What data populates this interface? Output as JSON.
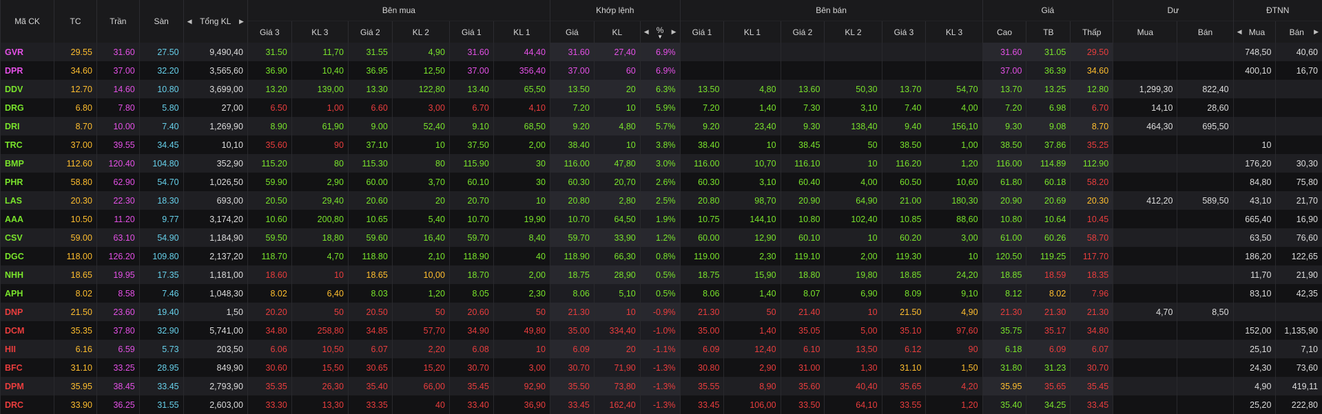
{
  "headers": {
    "symbol": "Mã CK",
    "ref": "TC",
    "ceiling": "Trần",
    "floor": "Sàn",
    "total_volume": "Tổng KL",
    "bid_group": "Bên mua",
    "match_group": "Khớp lệnh",
    "ask_group": "Bên bán",
    "price_group": "Giá",
    "remain_group": "Dư",
    "foreign_group": "ĐTNN",
    "bid_sub": [
      "Giá 3",
      "KL 3",
      "Giá 2",
      "KL 2",
      "Giá 1",
      "KL 1"
    ],
    "match_sub": [
      "Giá",
      "KL",
      "%"
    ],
    "ask_sub": [
      "Giá 1",
      "KL 1",
      "Giá 2",
      "KL 2",
      "Giá 3",
      "KL 3"
    ],
    "price_sub": [
      "Cao",
      "TB",
      "Thấp"
    ],
    "remain_sub": [
      "Mua",
      "Bán"
    ],
    "foreign_sub": [
      "Mua",
      "Bán"
    ]
  },
  "icons": {
    "left": "chevron-left-icon",
    "right": "chevron-right-icon",
    "sort": "sort-desc-icon"
  },
  "colors": {
    "up": "#79e32b",
    "down": "#ea3d3d",
    "ref": "#ffbe2e",
    "ceiling": "#e450e6",
    "floor": "#66cfe9",
    "neutral": "#dcdcdc"
  },
  "rows": [
    {
      "sym": "GVR",
      "sc": "ce",
      "tc": "29.55",
      "tran": "31.60",
      "san": "27.50",
      "tkl": "9,490,40",
      "b3": [
        "31.50",
        "u"
      ],
      "k3": "11,70",
      "b2": [
        "31.55",
        "u"
      ],
      "k2": "4,90",
      "b1": [
        "31.60",
        "ce"
      ],
      "k1": "44,40",
      "mp": [
        "31.60",
        "ce"
      ],
      "mk": "27,40",
      "pct": "6.9%",
      "a1": [
        "",
        ""
      ],
      "ak1": "",
      "a2": [
        "",
        ""
      ],
      "ak2": "",
      "a3": [
        "",
        ""
      ],
      "ak3": "",
      "hi": [
        "31.60",
        "ce"
      ],
      "avg": [
        "31.05",
        "u"
      ],
      "lo": [
        "29.50",
        "d"
      ],
      "rm": "",
      "rb": "",
      "fm": "748,50",
      "fb": "40,60"
    },
    {
      "sym": "DPR",
      "sc": "ce",
      "tc": "34.60",
      "tran": "37.00",
      "san": "32.20",
      "tkl": "3,565,60",
      "b3": [
        "36.90",
        "u"
      ],
      "k3": "10,40",
      "b2": [
        "36.95",
        "u"
      ],
      "k2": "12,50",
      "b1": [
        "37.00",
        "ce"
      ],
      "k1": "356,40",
      "mp": [
        "37.00",
        "ce"
      ],
      "mk": "60",
      "pct": "6.9%",
      "a1": [
        "",
        ""
      ],
      "ak1": "",
      "a2": [
        "",
        ""
      ],
      "ak2": "",
      "a3": [
        "",
        ""
      ],
      "ak3": "",
      "hi": [
        "37.00",
        "ce"
      ],
      "avg": [
        "36.39",
        "u"
      ],
      "lo": [
        "34.60",
        "r"
      ],
      "rm": "",
      "rb": "",
      "fm": "400,10",
      "fb": "16,70"
    },
    {
      "sym": "DDV",
      "sc": "u",
      "tc": "12.70",
      "tran": "14.60",
      "san": "10.80",
      "tkl": "3,699,00",
      "b3": [
        "13.20",
        "u"
      ],
      "k3": "139,00",
      "b2": [
        "13.30",
        "u"
      ],
      "k2": "122,80",
      "b1": [
        "13.40",
        "u"
      ],
      "k1": "65,50",
      "mp": [
        "13.50",
        "u"
      ],
      "mk": "20",
      "pct": "6.3%",
      "a1": [
        "13.50",
        "u"
      ],
      "ak1": "4,80",
      "a2": [
        "13.60",
        "u"
      ],
      "ak2": "50,30",
      "a3": [
        "13.70",
        "u"
      ],
      "ak3": "54,70",
      "hi": [
        "13.70",
        "u"
      ],
      "avg": [
        "13.25",
        "u"
      ],
      "lo": [
        "12.80",
        "u"
      ],
      "rm": "1,299,30",
      "rb": "822,40",
      "fm": "",
      "fb": ""
    },
    {
      "sym": "DRG",
      "sc": "u",
      "tc": "6.80",
      "tran": "7.80",
      "san": "5.80",
      "tkl": "27,00",
      "b3": [
        "6.50",
        "d"
      ],
      "k3": "1,00",
      "b2": [
        "6.60",
        "d"
      ],
      "k2": "3,00",
      "b1": [
        "6.70",
        "d"
      ],
      "k1": "4,10",
      "mp": [
        "7.20",
        "u"
      ],
      "mk": "10",
      "pct": "5.9%",
      "a1": [
        "7.20",
        "u"
      ],
      "ak1": "1,40",
      "a2": [
        "7.30",
        "u"
      ],
      "ak2": "3,10",
      "a3": [
        "7.40",
        "u"
      ],
      "ak3": "4,00",
      "hi": [
        "7.20",
        "u"
      ],
      "avg": [
        "6.98",
        "u"
      ],
      "lo": [
        "6.70",
        "d"
      ],
      "rm": "14,10",
      "rb": "28,60",
      "fm": "",
      "fb": ""
    },
    {
      "sym": "DRI",
      "sc": "u",
      "tc": "8.70",
      "tran": "10.00",
      "san": "7.40",
      "tkl": "1,269,90",
      "b3": [
        "8.90",
        "u"
      ],
      "k3": "61,90",
      "b2": [
        "9.00",
        "u"
      ],
      "k2": "52,40",
      "b1": [
        "9.10",
        "u"
      ],
      "k1": "68,50",
      "mp": [
        "9.20",
        "u"
      ],
      "mk": "4,80",
      "pct": "5.7%",
      "a1": [
        "9.20",
        "u"
      ],
      "ak1": "23,40",
      "a2": [
        "9.30",
        "u"
      ],
      "ak2": "138,40",
      "a3": [
        "9.40",
        "u"
      ],
      "ak3": "156,10",
      "hi": [
        "9.30",
        "u"
      ],
      "avg": [
        "9.08",
        "u"
      ],
      "lo": [
        "8.70",
        "r"
      ],
      "rm": "464,30",
      "rb": "695,50",
      "fm": "",
      "fb": ""
    },
    {
      "sym": "TRC",
      "sc": "u",
      "tc": "37.00",
      "tran": "39.55",
      "san": "34.45",
      "tkl": "10,10",
      "b3": [
        "35.60",
        "d"
      ],
      "k3": "90",
      "b2": [
        "37.10",
        "u"
      ],
      "k2": "10",
      "b1": [
        "37.50",
        "u"
      ],
      "k1": "2,00",
      "mp": [
        "38.40",
        "u"
      ],
      "mk": "10",
      "pct": "3.8%",
      "a1": [
        "38.40",
        "u"
      ],
      "ak1": "10",
      "a2": [
        "38.45",
        "u"
      ],
      "ak2": "50",
      "a3": [
        "38.50",
        "u"
      ],
      "ak3": "1,00",
      "hi": [
        "38.50",
        "u"
      ],
      "avg": [
        "37.86",
        "u"
      ],
      "lo": [
        "35.25",
        "d"
      ],
      "rm": "",
      "rb": "",
      "fm": "10",
      "fb": ""
    },
    {
      "sym": "BMP",
      "sc": "u",
      "tc": "112.60",
      "tran": "120.40",
      "san": "104.80",
      "tkl": "352,90",
      "b3": [
        "115.20",
        "u"
      ],
      "k3": "80",
      "b2": [
        "115.30",
        "u"
      ],
      "k2": "80",
      "b1": [
        "115.90",
        "u"
      ],
      "k1": "30",
      "mp": [
        "116.00",
        "u"
      ],
      "mk": "47,80",
      "pct": "3.0%",
      "a1": [
        "116.00",
        "u"
      ],
      "ak1": "10,70",
      "a2": [
        "116.10",
        "u"
      ],
      "ak2": "10",
      "a3": [
        "116.20",
        "u"
      ],
      "ak3": "1,20",
      "hi": [
        "116.00",
        "u"
      ],
      "avg": [
        "114.89",
        "u"
      ],
      "lo": [
        "112.90",
        "u"
      ],
      "rm": "",
      "rb": "",
      "fm": "176,20",
      "fb": "30,30"
    },
    {
      "sym": "PHR",
      "sc": "u",
      "tc": "58.80",
      "tran": "62.90",
      "san": "54.70",
      "tkl": "1,026,50",
      "b3": [
        "59.90",
        "u"
      ],
      "k3": "2,90",
      "b2": [
        "60.00",
        "u"
      ],
      "k2": "3,70",
      "b1": [
        "60.10",
        "u"
      ],
      "k1": "30",
      "mp": [
        "60.30",
        "u"
      ],
      "mk": "20,70",
      "pct": "2.6%",
      "a1": [
        "60.30",
        "u"
      ],
      "ak1": "3,10",
      "a2": [
        "60.40",
        "u"
      ],
      "ak2": "4,00",
      "a3": [
        "60.50",
        "u"
      ],
      "ak3": "10,60",
      "hi": [
        "61.80",
        "u"
      ],
      "avg": [
        "60.18",
        "u"
      ],
      "lo": [
        "58.20",
        "d"
      ],
      "rm": "",
      "rb": "",
      "fm": "84,80",
      "fb": "75,80"
    },
    {
      "sym": "LAS",
      "sc": "u",
      "tc": "20.30",
      "tran": "22.30",
      "san": "18.30",
      "tkl": "693,00",
      "b3": [
        "20.50",
        "u"
      ],
      "k3": "29,40",
      "b2": [
        "20.60",
        "u"
      ],
      "k2": "20",
      "b1": [
        "20.70",
        "u"
      ],
      "k1": "10",
      "mp": [
        "20.80",
        "u"
      ],
      "mk": "2,80",
      "pct": "2.5%",
      "a1": [
        "20.80",
        "u"
      ],
      "ak1": "98,70",
      "a2": [
        "20.90",
        "u"
      ],
      "ak2": "64,90",
      "a3": [
        "21.00",
        "u"
      ],
      "ak3": "180,30",
      "hi": [
        "20.90",
        "u"
      ],
      "avg": [
        "20.69",
        "u"
      ],
      "lo": [
        "20.30",
        "r"
      ],
      "rm": "412,20",
      "rb": "589,50",
      "fm": "43,10",
      "fb": "21,70"
    },
    {
      "sym": "AAA",
      "sc": "u",
      "tc": "10.50",
      "tran": "11.20",
      "san": "9.77",
      "tkl": "3,174,20",
      "b3": [
        "10.60",
        "u"
      ],
      "k3": "200,80",
      "b2": [
        "10.65",
        "u"
      ],
      "k2": "5,40",
      "b1": [
        "10.70",
        "u"
      ],
      "k1": "19,90",
      "mp": [
        "10.70",
        "u"
      ],
      "mk": "64,50",
      "pct": "1.9%",
      "a1": [
        "10.75",
        "u"
      ],
      "ak1": "144,10",
      "a2": [
        "10.80",
        "u"
      ],
      "ak2": "102,40",
      "a3": [
        "10.85",
        "u"
      ],
      "ak3": "88,60",
      "hi": [
        "10.80",
        "u"
      ],
      "avg": [
        "10.64",
        "u"
      ],
      "lo": [
        "10.45",
        "d"
      ],
      "rm": "",
      "rb": "",
      "fm": "665,40",
      "fb": "16,90"
    },
    {
      "sym": "CSV",
      "sc": "u",
      "tc": "59.00",
      "tran": "63.10",
      "san": "54.90",
      "tkl": "1,184,90",
      "b3": [
        "59.50",
        "u"
      ],
      "k3": "18,80",
      "b2": [
        "59.60",
        "u"
      ],
      "k2": "16,40",
      "b1": [
        "59.70",
        "u"
      ],
      "k1": "8,40",
      "mp": [
        "59.70",
        "u"
      ],
      "mk": "33,90",
      "pct": "1.2%",
      "a1": [
        "60.00",
        "u"
      ],
      "ak1": "12,90",
      "a2": [
        "60.10",
        "u"
      ],
      "ak2": "10",
      "a3": [
        "60.20",
        "u"
      ],
      "ak3": "3,00",
      "hi": [
        "61.00",
        "u"
      ],
      "avg": [
        "60.26",
        "u"
      ],
      "lo": [
        "58.70",
        "d"
      ],
      "rm": "",
      "rb": "",
      "fm": "63,50",
      "fb": "76,60"
    },
    {
      "sym": "DGC",
      "sc": "u",
      "tc": "118.00",
      "tran": "126.20",
      "san": "109.80",
      "tkl": "2,137,20",
      "b3": [
        "118.70",
        "u"
      ],
      "k3": "4,70",
      "b2": [
        "118.80",
        "u"
      ],
      "k2": "2,10",
      "b1": [
        "118.90",
        "u"
      ],
      "k1": "40",
      "mp": [
        "118.90",
        "u"
      ],
      "mk": "66,30",
      "pct": "0.8%",
      "a1": [
        "119.00",
        "u"
      ],
      "ak1": "2,30",
      "a2": [
        "119.10",
        "u"
      ],
      "ak2": "2,00",
      "a3": [
        "119.30",
        "u"
      ],
      "ak3": "10",
      "hi": [
        "120.50",
        "u"
      ],
      "avg": [
        "119.25",
        "u"
      ],
      "lo": [
        "117.70",
        "d"
      ],
      "rm": "",
      "rb": "",
      "fm": "186,20",
      "fb": "122,65"
    },
    {
      "sym": "NHH",
      "sc": "u",
      "tc": "18.65",
      "tran": "19.95",
      "san": "17.35",
      "tkl": "1,181,00",
      "b3": [
        "18.60",
        "d"
      ],
      "k3": "10",
      "b2": [
        "18.65",
        "r"
      ],
      "k2": "10,00",
      "b1": [
        "18.70",
        "u"
      ],
      "k1": "2,00",
      "mp": [
        "18.75",
        "u"
      ],
      "mk": "28,90",
      "pct": "0.5%",
      "a1": [
        "18.75",
        "u"
      ],
      "ak1": "15,90",
      "a2": [
        "18.80",
        "u"
      ],
      "ak2": "19,80",
      "a3": [
        "18.85",
        "u"
      ],
      "ak3": "24,20",
      "hi": [
        "18.85",
        "u"
      ],
      "avg": [
        "18.59",
        "d"
      ],
      "lo": [
        "18.35",
        "d"
      ],
      "rm": "",
      "rb": "",
      "fm": "11,70",
      "fb": "21,90"
    },
    {
      "sym": "APH",
      "sc": "u",
      "tc": "8.02",
      "tran": "8.58",
      "san": "7.46",
      "tkl": "1,048,30",
      "b3": [
        "8.02",
        "r"
      ],
      "k3": "6,40",
      "b2": [
        "8.03",
        "u"
      ],
      "k2": "1,20",
      "b1": [
        "8.05",
        "u"
      ],
      "k1": "2,30",
      "mp": [
        "8.06",
        "u"
      ],
      "mk": "5,10",
      "pct": "0.5%",
      "a1": [
        "8.06",
        "u"
      ],
      "ak1": "1,40",
      "a2": [
        "8.07",
        "u"
      ],
      "ak2": "6,90",
      "a3": [
        "8.09",
        "u"
      ],
      "ak3": "9,10",
      "hi": [
        "8.12",
        "u"
      ],
      "avg": [
        "8.02",
        "r"
      ],
      "lo": [
        "7.96",
        "d"
      ],
      "rm": "",
      "rb": "",
      "fm": "83,10",
      "fb": "42,35"
    },
    {
      "sym": "DNP",
      "sc": "d",
      "tc": "21.50",
      "tran": "23.60",
      "san": "19.40",
      "tkl": "1,50",
      "b3": [
        "20.20",
        "d"
      ],
      "k3": "50",
      "b2": [
        "20.50",
        "d"
      ],
      "k2": "50",
      "b1": [
        "20.60",
        "d"
      ],
      "k1": "50",
      "mp": [
        "21.30",
        "d"
      ],
      "mk": "10",
      "pct": "-0.9%",
      "a1": [
        "21.30",
        "d"
      ],
      "ak1": "50",
      "a2": [
        "21.40",
        "d"
      ],
      "ak2": "10",
      "a3": [
        "21.50",
        "r"
      ],
      "ak3": "4,90",
      "hi": [
        "21.30",
        "d"
      ],
      "avg": [
        "21.30",
        "d"
      ],
      "lo": [
        "21.30",
        "d"
      ],
      "rm": "4,70",
      "rb": "8,50",
      "fm": "",
      "fb": ""
    },
    {
      "sym": "DCM",
      "sc": "d",
      "tc": "35.35",
      "tran": "37.80",
      "san": "32.90",
      "tkl": "5,741,00",
      "b3": [
        "34.80",
        "d"
      ],
      "k3": "258,80",
      "b2": [
        "34.85",
        "d"
      ],
      "k2": "57,70",
      "b1": [
        "34.90",
        "d"
      ],
      "k1": "49,80",
      "mp": [
        "35.00",
        "d"
      ],
      "mk": "334,40",
      "pct": "-1.0%",
      "a1": [
        "35.00",
        "d"
      ],
      "ak1": "1,40",
      "a2": [
        "35.05",
        "d"
      ],
      "ak2": "5,00",
      "a3": [
        "35.10",
        "d"
      ],
      "ak3": "97,60",
      "hi": [
        "35.75",
        "u"
      ],
      "avg": [
        "35.17",
        "d"
      ],
      "lo": [
        "34.80",
        "d"
      ],
      "rm": "",
      "rb": "",
      "fm": "152,00",
      "fb": "1,135,90"
    },
    {
      "sym": "HII",
      "sc": "d",
      "tc": "6.16",
      "tran": "6.59",
      "san": "5.73",
      "tkl": "203,50",
      "b3": [
        "6.06",
        "d"
      ],
      "k3": "10,50",
      "b2": [
        "6.07",
        "d"
      ],
      "k2": "2,20",
      "b1": [
        "6.08",
        "d"
      ],
      "k1": "10",
      "mp": [
        "6.09",
        "d"
      ],
      "mk": "20",
      "pct": "-1.1%",
      "a1": [
        "6.09",
        "d"
      ],
      "ak1": "12,40",
      "a2": [
        "6.10",
        "d"
      ],
      "ak2": "13,50",
      "a3": [
        "6.12",
        "d"
      ],
      "ak3": "90",
      "hi": [
        "6.18",
        "u"
      ],
      "avg": [
        "6.09",
        "d"
      ],
      "lo": [
        "6.07",
        "d"
      ],
      "rm": "",
      "rb": "",
      "fm": "25,10",
      "fb": "7,10"
    },
    {
      "sym": "BFC",
      "sc": "d",
      "tc": "31.10",
      "tran": "33.25",
      "san": "28.95",
      "tkl": "849,90",
      "b3": [
        "30.60",
        "d"
      ],
      "k3": "15,50",
      "b2": [
        "30.65",
        "d"
      ],
      "k2": "15,20",
      "b1": [
        "30.70",
        "d"
      ],
      "k1": "3,00",
      "mp": [
        "30.70",
        "d"
      ],
      "mk": "71,90",
      "pct": "-1.3%",
      "a1": [
        "30.80",
        "d"
      ],
      "ak1": "2,90",
      "a2": [
        "31.00",
        "d"
      ],
      "ak2": "1,30",
      "a3": [
        "31.10",
        "r"
      ],
      "ak3": "1,50",
      "hi": [
        "31.80",
        "u"
      ],
      "avg": [
        "31.23",
        "u"
      ],
      "lo": [
        "30.70",
        "d"
      ],
      "rm": "",
      "rb": "",
      "fm": "24,30",
      "fb": "73,60"
    },
    {
      "sym": "DPM",
      "sc": "d",
      "tc": "35.95",
      "tran": "38.45",
      "san": "33.45",
      "tkl": "2,793,90",
      "b3": [
        "35.35",
        "d"
      ],
      "k3": "26,30",
      "b2": [
        "35.40",
        "d"
      ],
      "k2": "66,00",
      "b1": [
        "35.45",
        "d"
      ],
      "k1": "92,90",
      "mp": [
        "35.50",
        "d"
      ],
      "mk": "73,80",
      "pct": "-1.3%",
      "a1": [
        "35.55",
        "d"
      ],
      "ak1": "8,90",
      "a2": [
        "35.60",
        "d"
      ],
      "ak2": "40,40",
      "a3": [
        "35.65",
        "d"
      ],
      "ak3": "4,20",
      "hi": [
        "35.95",
        "r"
      ],
      "avg": [
        "35.65",
        "d"
      ],
      "lo": [
        "35.45",
        "d"
      ],
      "rm": "",
      "rb": "",
      "fm": "4,90",
      "fb": "419,11"
    },
    {
      "sym": "DRC",
      "sc": "d",
      "tc": "33.90",
      "tran": "36.25",
      "san": "31.55",
      "tkl": "2,603,00",
      "b3": [
        "33.30",
        "d"
      ],
      "k3": "13,30",
      "b2": [
        "33.35",
        "d"
      ],
      "k2": "40",
      "b1": [
        "33.40",
        "d"
      ],
      "k1": "36,90",
      "mp": [
        "33.45",
        "d"
      ],
      "mk": "162,40",
      "pct": "-1.3%",
      "a1": [
        "33.45",
        "d"
      ],
      "ak1": "106,00",
      "a2": [
        "33.50",
        "d"
      ],
      "ak2": "64,10",
      "a3": [
        "33.55",
        "d"
      ],
      "ak3": "1,20",
      "hi": [
        "35.40",
        "u"
      ],
      "avg": [
        "34.25",
        "u"
      ],
      "lo": [
        "33.45",
        "d"
      ],
      "rm": "",
      "rb": "",
      "fm": "25,20",
      "fb": "222,80"
    }
  ]
}
